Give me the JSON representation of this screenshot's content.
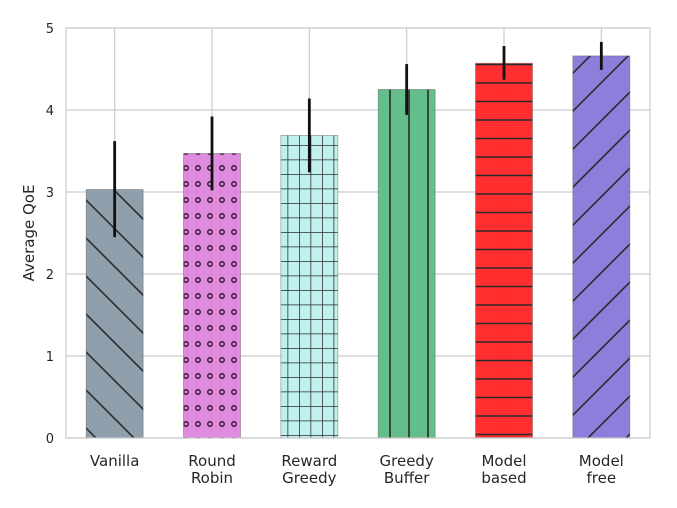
{
  "chart_data": {
    "type": "bar",
    "title": "",
    "xlabel": "",
    "ylabel": "Average QoE",
    "ylim": [
      0,
      5
    ],
    "yticks": [
      "0",
      "1",
      "2",
      "3",
      "4",
      "5"
    ],
    "grid": true,
    "categories": [
      [
        "Vanilla"
      ],
      [
        "Round",
        "Robin"
      ],
      [
        "Reward",
        "Greedy"
      ],
      [
        "Greedy",
        "Buffer"
      ],
      [
        "Model",
        "based"
      ],
      [
        "Model",
        "free"
      ]
    ],
    "values": [
      3.03,
      3.47,
      3.69,
      4.25,
      4.57,
      4.66
    ],
    "error_low": [
      2.45,
      3.02,
      3.24,
      3.94,
      4.37,
      4.49
    ],
    "error_high": [
      3.62,
      3.92,
      4.14,
      4.56,
      4.78,
      4.83
    ],
    "colors": [
      "#8a9aa8",
      "#de86dc",
      "#bdf0ee",
      "#5cba85",
      "#ff2424",
      "#8677d9"
    ],
    "patterns": [
      "back-diagonal",
      "dots",
      "grid",
      "vertical",
      "horizontal",
      "forward-diagonal"
    ]
  }
}
